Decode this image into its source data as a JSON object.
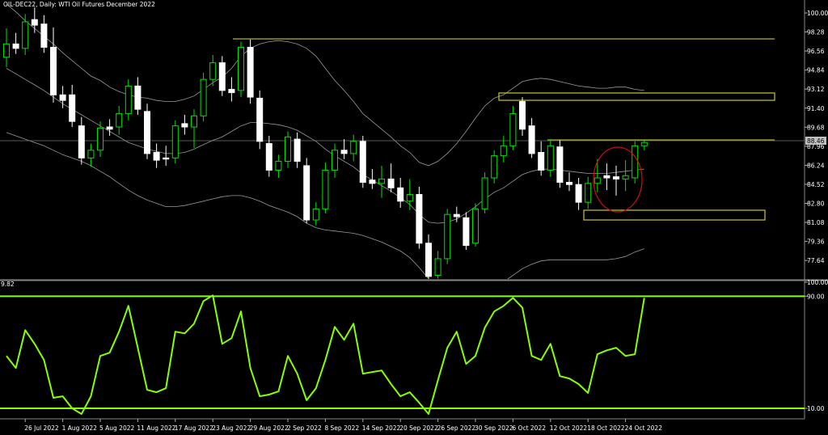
{
  "chart_data": [
    {
      "type": "candlestick",
      "title": "OIL-DEC22, Daily:  WTI Oil Futures December 2022",
      "categories": [
        null,
        null,
        "26 Jul 2022",
        null,
        null,
        null,
        "1 Aug 2022",
        null,
        null,
        null,
        "5 Aug 2022",
        null,
        null,
        null,
        "11 Aug 2022",
        null,
        null,
        null,
        "17 Aug 2022",
        null,
        null,
        null,
        "23 Aug 2022",
        null,
        null,
        null,
        "29 Aug 2022",
        null,
        null,
        null,
        "2 Sep 2022",
        null,
        null,
        null,
        "8 Sep 2022",
        null,
        null,
        null,
        "14 Sep 2022",
        null,
        null,
        null,
        "20 Sep 2022",
        null,
        null,
        null,
        "26 Sep 2022",
        null,
        null,
        null,
        "30 Sep 2022",
        null,
        null,
        null,
        "6 Oct 2022",
        null,
        null,
        null,
        "12 Oct 2022",
        null,
        null,
        null,
        "18 Oct 2022",
        null,
        null,
        null,
        "24 Oct 2022",
        null,
        null
      ],
      "ohlc": [
        [
          96.0,
          98.6,
          95.1,
          97.2
        ],
        [
          97.2,
          98.2,
          96.3,
          96.8
        ],
        [
          96.8,
          99.9,
          96.2,
          99.2
        ],
        [
          99.4,
          100.5,
          98.2,
          98.9
        ],
        [
          99.0,
          99.8,
          96.4,
          96.9
        ],
        [
          96.9,
          98.7,
          91.9,
          92.6
        ],
        [
          92.6,
          93.4,
          91.4,
          92.1
        ],
        [
          92.6,
          93.5,
          89.7,
          90.2
        ],
        [
          89.8,
          90.6,
          86.3,
          86.9
        ],
        [
          86.9,
          88.2,
          86.1,
          87.6
        ],
        [
          87.6,
          90.2,
          87.0,
          89.6
        ],
        [
          89.7,
          90.4,
          88.9,
          89.5
        ],
        [
          89.7,
          91.6,
          89.0,
          90.9
        ],
        [
          90.9,
          94.0,
          90.3,
          93.4
        ],
        [
          93.4,
          94.2,
          90.8,
          91.3
        ],
        [
          91.1,
          91.8,
          86.8,
          87.3
        ],
        [
          87.4,
          88.2,
          86.0,
          86.7
        ],
        [
          86.9,
          88.0,
          86.2,
          86.8
        ],
        [
          86.9,
          90.3,
          86.4,
          89.8
        ],
        [
          90.0,
          90.8,
          89.0,
          89.7
        ],
        [
          89.7,
          91.3,
          87.8,
          90.7
        ],
        [
          90.7,
          94.6,
          90.2,
          94.0
        ],
        [
          94.0,
          96.2,
          93.4,
          95.5
        ],
        [
          95.5,
          96.1,
          92.5,
          93.0
        ],
        [
          93.1,
          94.2,
          92.0,
          92.8
        ],
        [
          93.0,
          97.4,
          92.4,
          96.9
        ],
        [
          96.9,
          97.6,
          91.8,
          92.4
        ],
        [
          92.3,
          93.0,
          87.7,
          88.4
        ],
        [
          88.2,
          88.9,
          85.2,
          85.8
        ],
        [
          85.8,
          87.2,
          85.1,
          86.6
        ],
        [
          86.6,
          89.3,
          86.0,
          88.8
        ],
        [
          88.6,
          89.2,
          86.0,
          86.6
        ],
        [
          86.2,
          86.9,
          81.0,
          81.3
        ],
        [
          81.3,
          82.9,
          80.8,
          82.3
        ],
        [
          82.3,
          86.5,
          81.9,
          85.8
        ],
        [
          85.8,
          88.2,
          85.1,
          87.6
        ],
        [
          87.6,
          88.6,
          86.8,
          87.3
        ],
        [
          87.3,
          89.0,
          86.6,
          88.4
        ],
        [
          88.4,
          88.9,
          84.2,
          84.7
        ],
        [
          84.9,
          85.9,
          84.1,
          84.6
        ],
        [
          84.6,
          86.2,
          83.3,
          85.0
        ],
        [
          85.0,
          86.4,
          83.8,
          84.2
        ],
        [
          84.2,
          85.1,
          82.4,
          83.0
        ],
        [
          83.0,
          85.0,
          82.2,
          83.6
        ],
        [
          83.6,
          84.3,
          78.7,
          79.2
        ],
        [
          79.2,
          80.0,
          76.0,
          76.2
        ],
        [
          76.3,
          78.5,
          76.0,
          77.8
        ],
        [
          77.8,
          82.3,
          77.3,
          81.8
        ],
        [
          81.8,
          82.5,
          81.1,
          81.6
        ],
        [
          81.5,
          82.0,
          78.6,
          79.0
        ],
        [
          79.2,
          82.8,
          78.9,
          82.3
        ],
        [
          82.3,
          85.6,
          81.9,
          85.1
        ],
        [
          85.1,
          87.6,
          84.6,
          87.1
        ],
        [
          87.1,
          88.9,
          86.5,
          88.0
        ],
        [
          88.0,
          91.6,
          87.6,
          90.9
        ],
        [
          92.0,
          92.4,
          88.9,
          89.5
        ],
        [
          89.8,
          90.5,
          86.9,
          87.3
        ],
        [
          87.4,
          88.4,
          85.3,
          85.8
        ],
        [
          85.8,
          88.6,
          85.2,
          88.0
        ],
        [
          87.9,
          88.5,
          84.2,
          84.7
        ],
        [
          84.7,
          85.6,
          83.9,
          84.5
        ],
        [
          84.5,
          85.1,
          82.2,
          82.9
        ],
        [
          82.9,
          85.2,
          82.3,
          84.6
        ],
        [
          84.6,
          86.8,
          83.8,
          85.1
        ],
        [
          85.3,
          86.4,
          84.0,
          85.1
        ],
        [
          85.2,
          86.2,
          83.5,
          85.0
        ],
        [
          85.0,
          86.7,
          83.9,
          85.3
        ],
        [
          85.1,
          88.4,
          84.6,
          88.0
        ],
        [
          88.0,
          88.5,
          87.6,
          88.3
        ]
      ],
      "up_color": "#00e000",
      "down_color": "#ffffff",
      "bands": {
        "upper": [
          100.8,
          100.1,
          99.3,
          98.6,
          97.9,
          97.2,
          96.4,
          95.7,
          95.0,
          94.3,
          93.9,
          93.3,
          92.9,
          92.6,
          92.4,
          92.3,
          92.1,
          92.0,
          92.0,
          92.2,
          92.5,
          93.1,
          93.7,
          94.2,
          95.0,
          96.1,
          96.8,
          97.2,
          97.4,
          97.5,
          97.4,
          97.2,
          96.8,
          96.1,
          95.0,
          93.9,
          93.0,
          92.0,
          90.9,
          90.2,
          89.5,
          88.8,
          88.0,
          87.4,
          86.5,
          86.2,
          86.6,
          87.3,
          88.2,
          89.3,
          90.5,
          91.6,
          92.3,
          92.6,
          93.2,
          93.8,
          94.0,
          94.1,
          94.0,
          93.8,
          93.6,
          93.4,
          93.3,
          93.2,
          93.2,
          93.3,
          93.3,
          93.1,
          93.0
        ],
        "middle": [
          95.0,
          94.5,
          94.0,
          93.5,
          93.0,
          92.4,
          91.8,
          91.3,
          90.8,
          90.3,
          89.8,
          89.3,
          88.8,
          88.3,
          88.0,
          87.7,
          87.5,
          87.3,
          87.3,
          87.4,
          87.7,
          88.1,
          88.5,
          88.8,
          89.3,
          89.8,
          90.1,
          90.1,
          90.0,
          89.9,
          89.7,
          89.4,
          88.9,
          88.4,
          87.7,
          87.1,
          86.6,
          86.1,
          85.4,
          84.9,
          84.4,
          83.9,
          83.3,
          82.7,
          81.8,
          81.1,
          81.0,
          81.1,
          81.4,
          81.9,
          82.5,
          83.2,
          83.8,
          84.2,
          84.8,
          85.4,
          85.7,
          85.9,
          85.9,
          85.8,
          85.7,
          85.6,
          85.5,
          85.5,
          85.5,
          85.6,
          85.7,
          85.8,
          85.9
        ],
        "lower": [
          89.2,
          88.9,
          88.6,
          88.3,
          88.0,
          87.6,
          87.2,
          86.9,
          86.6,
          86.2,
          85.7,
          85.2,
          84.6,
          84.0,
          83.5,
          83.1,
          82.8,
          82.5,
          82.5,
          82.6,
          82.8,
          83.0,
          83.2,
          83.4,
          83.5,
          83.5,
          83.3,
          83.0,
          82.6,
          82.3,
          82.0,
          81.6,
          81.0,
          80.6,
          80.4,
          80.3,
          80.2,
          80.1,
          79.9,
          79.6,
          79.3,
          78.9,
          78.5,
          77.9,
          77.0,
          76.0,
          75.3,
          74.8,
          74.5,
          74.4,
          74.5,
          74.8,
          75.2,
          75.7,
          76.3,
          76.9,
          77.3,
          77.6,
          77.7,
          77.7,
          77.7,
          77.7,
          77.7,
          77.7,
          77.7,
          77.8,
          78.0,
          78.4,
          78.7
        ]
      },
      "band_color": "#9a9a9a",
      "last_price": 88.46,
      "zones": [
        {
          "level": 97.66
        },
        {
          "low": 92.11,
          "high": 92.77
        },
        {
          "level": 88.53
        },
        {
          "low": 81.3,
          "high": 82.18
        }
      ],
      "zone_color": "#c8c832",
      "ylim": [
        75.97,
        101.17
      ],
      "yticks": [
        {
          "value": 100,
          "label": "100.00"
        },
        98.28,
        96.56,
        94.84,
        93.12,
        {
          "value": 91.4,
          "label": "91.40"
        },
        89.68,
        87.96,
        86.24,
        84.52,
        {
          "value": 82.8,
          "label": "82.80"
        },
        81.08,
        79.36,
        77.64
      ]
    },
    {
      "type": "line",
      "label": "9.82",
      "values": [
        47.4,
        38.8,
        65.8,
        56.0,
        44.5,
        17.5,
        18.6,
        10.0,
        6.0,
        18.6,
        47.4,
        49.7,
        64.7,
        83.1,
        53.2,
        23.2,
        21.5,
        24.4,
        64.7,
        63.5,
        70.4,
        86.5,
        90.6,
        56.0,
        60.1,
        79.1,
        38.8,
        18.6,
        19.8,
        22.1,
        47.4,
        34.7,
        15.8,
        24.4,
        44.5,
        68.1,
        58.9,
        70.4,
        34.7,
        35.9,
        37.0,
        27.3,
        18.6,
        21.5,
        14.0,
        6.0,
        30.1,
        53.2,
        64.7,
        41.7,
        47.4,
        67.6,
        79.1,
        83.1,
        88.8,
        81.9,
        47.4,
        44.5,
        56.0,
        33.0,
        31.3,
        27.3,
        21.0,
        48.6,
        51.4,
        53.2,
        47.4,
        48.6,
        88.8
      ],
      "color": "#88ff00",
      "ylim": [
        3.1,
        100
      ],
      "yticks": [
        {
          "value": 100,
          "label": "100.00"
        },
        {
          "value": 90,
          "label": "90.00"
        },
        {
          "value": 10,
          "label": "10.00"
        }
      ]
    }
  ]
}
